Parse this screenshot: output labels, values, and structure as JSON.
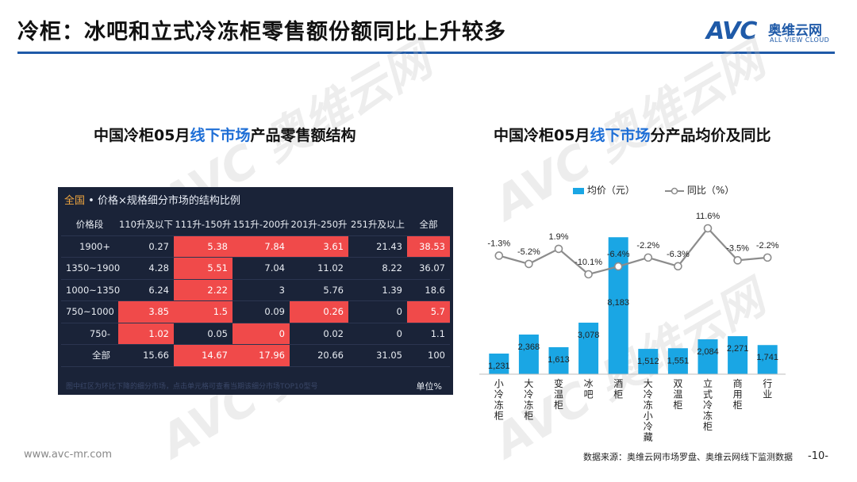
{
  "header": {
    "title": "冷柜：冰吧和立式冷冻柜零售额份额同比上升较多",
    "logo_text": "AVC",
    "logo_cn": "奥维云网",
    "logo_en": "ALL VIEW CLOUD"
  },
  "watermark": {
    "text": "AVC 奥维云网",
    "sub": "ALL VIEW CLOUD"
  },
  "left_panel": {
    "subtitle_pre": "中国冷柜05月",
    "subtitle_hl": "线下市场",
    "subtitle_post": "产品零售额结构",
    "table_heading_accent": "全国",
    "table_heading_rest": " • 价格×规格细分市场的结构比例",
    "table_note": "图中红区为环比下降的细分市场，点击单元格可查看当期该细分市场TOP10型号",
    "unit": "单位%"
  },
  "chart_data": [
    {
      "type": "table",
      "columns": [
        "价格段",
        "110升及以下",
        "111升-150升",
        "151升-200升",
        "201升-250升",
        "251升及以上",
        "全部"
      ],
      "rows": [
        {
          "label": "1900+",
          "values": [
            "0.27",
            "5.38",
            "7.84",
            "3.61",
            "21.43",
            "38.53"
          ],
          "red": [
            false,
            true,
            true,
            true,
            false,
            true
          ]
        },
        {
          "label": "1350~1900",
          "values": [
            "4.28",
            "5.51",
            "7.04",
            "11.02",
            "8.22",
            "36.07"
          ],
          "red": [
            false,
            true,
            false,
            false,
            false,
            false
          ]
        },
        {
          "label": "1000~1350",
          "values": [
            "6.24",
            "2.22",
            "3",
            "5.76",
            "1.39",
            "18.6"
          ],
          "red": [
            false,
            true,
            false,
            false,
            false,
            false
          ]
        },
        {
          "label": "750~1000",
          "values": [
            "3.85",
            "1.5",
            "0.09",
            "0.26",
            "0",
            "5.7"
          ],
          "red": [
            true,
            true,
            false,
            true,
            false,
            true
          ]
        },
        {
          "label": "750-",
          "values": [
            "1.02",
            "0.05",
            "0",
            "0.02",
            "0",
            "1.1"
          ],
          "red": [
            true,
            false,
            true,
            false,
            false,
            false
          ]
        },
        {
          "label": "全部",
          "values": [
            "15.66",
            "14.67",
            "17.96",
            "20.66",
            "31.05",
            "100"
          ],
          "red": [
            false,
            true,
            true,
            false,
            false,
            false
          ]
        }
      ]
    },
    {
      "type": "bar",
      "title_pre": "中国冷柜05月",
      "title_hl": "线下市场",
      "title_post": "分产品均价及同比",
      "categories": [
        "小冷冻柜",
        "大冷冻柜",
        "变温柜",
        "冰吧",
        "酒柜",
        "大冷冻小冷藏",
        "双温柜",
        "立式冷冻柜",
        "商用柜",
        "行业"
      ],
      "series": [
        {
          "name": "均价（元）",
          "type": "bar",
          "color": "#1aa6e4",
          "values": [
            1231,
            2368,
            1613,
            3078,
            8183,
            1512,
            1551,
            2084,
            2271,
            1741
          ],
          "labels": [
            "1,231",
            "2,368",
            "1,613",
            "3,078",
            "8,183",
            "1,512",
            "1,551",
            "2,084",
            "2,271",
            "1,741"
          ]
        },
        {
          "name": "同比（%）",
          "type": "line",
          "color": "#8c8c8c",
          "values": [
            -1.3,
            -5.2,
            1.9,
            -10.1,
            -6.4,
            -2.2,
            -6.3,
            11.6,
            -3.5,
            -2.2
          ],
          "labels": [
            "-1.3%",
            "-5.2%",
            "1.9%",
            "-10.1%",
            "-6.4%",
            "-2.2%",
            "-6.3%",
            "11.6%",
            "-3.5%",
            "-2.2%"
          ]
        }
      ]
    }
  ],
  "footer": {
    "website": "www.avc-mr.com",
    "source": "数据来源：奥维云网市场罗盘、奥维云网线下监测数据",
    "page": "-10-"
  }
}
